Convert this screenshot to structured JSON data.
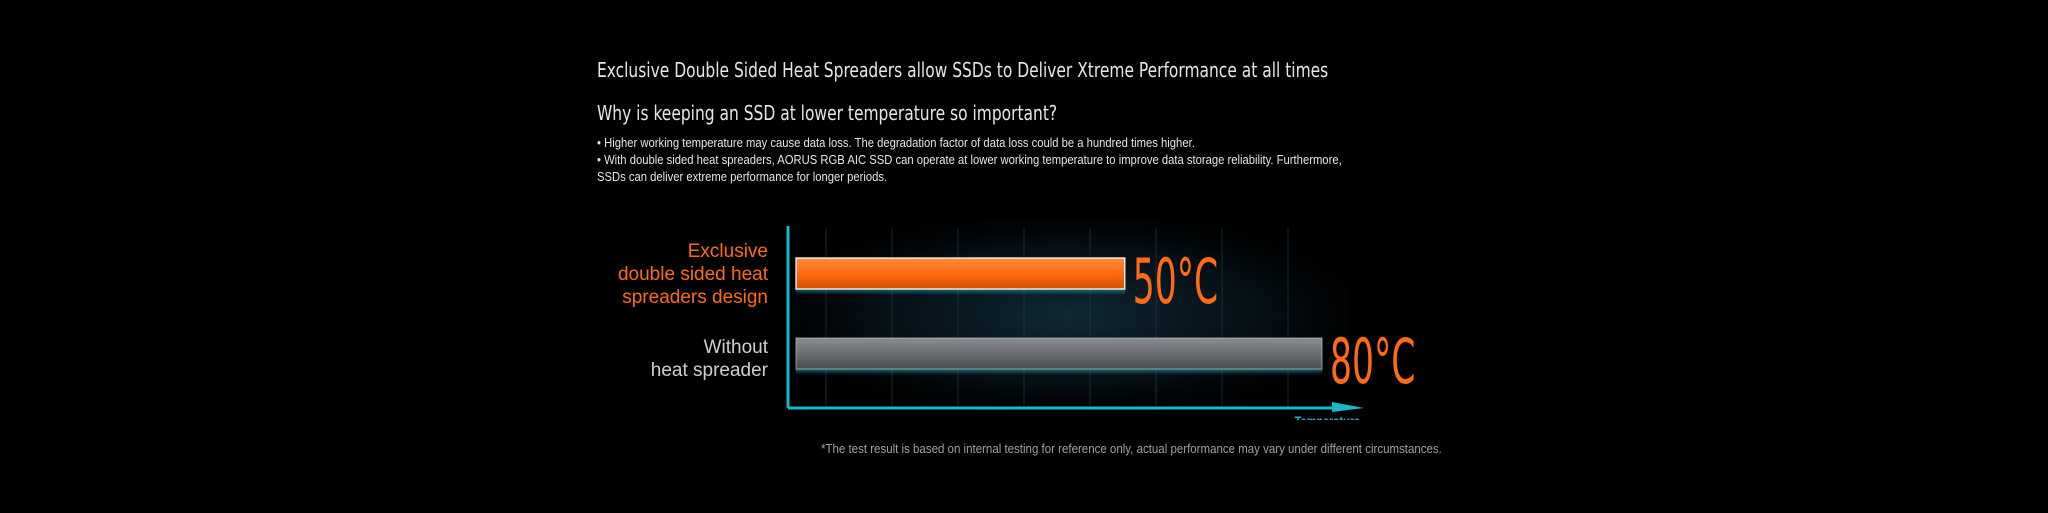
{
  "heading": {
    "title": "Exclusive Double Sided Heat Spreaders allow SSDs to Deliver Xtreme Performance at all times",
    "subtitle": "Why is keeping an SSD at lower temperature so important?",
    "bullets": [
      "• Higher working temperature may cause data loss. The degradation factor of data loss could be a hundred times higher.",
      "• With double sided heat spreaders, AORUS RGB AIC SSD can operate at lower working temperature to improve data storage reliability. Furthermore, SSDs can deliver extreme performance for longer periods."
    ]
  },
  "footnote": "*The test result is based on internal testing for reference only, actual performance may vary under different circumstances.",
  "colors": {
    "background": "#000000",
    "accent_orange": "#ff6a13",
    "bar_gray": "#6b6e72",
    "axis_cyan": "#16b8c9",
    "label_gray": "#cfcfcf"
  },
  "chart_data": {
    "type": "bar",
    "orientation": "horizontal",
    "xlabel": "Temperature",
    "grid": true,
    "xlim": [
      0,
      90
    ],
    "series": [
      {
        "label_lines": [
          "Exclusive",
          "double sided heat",
          "spreaders design"
        ],
        "value": 50,
        "value_label": "50°C",
        "color": "#ff6a13",
        "label_color": "#ff6a13"
      },
      {
        "label_lines": [
          "Without",
          "heat spreader"
        ],
        "value": 80,
        "value_label": "80°C",
        "color": "#6b6e72",
        "label_color": "#cfcfcf"
      }
    ]
  }
}
